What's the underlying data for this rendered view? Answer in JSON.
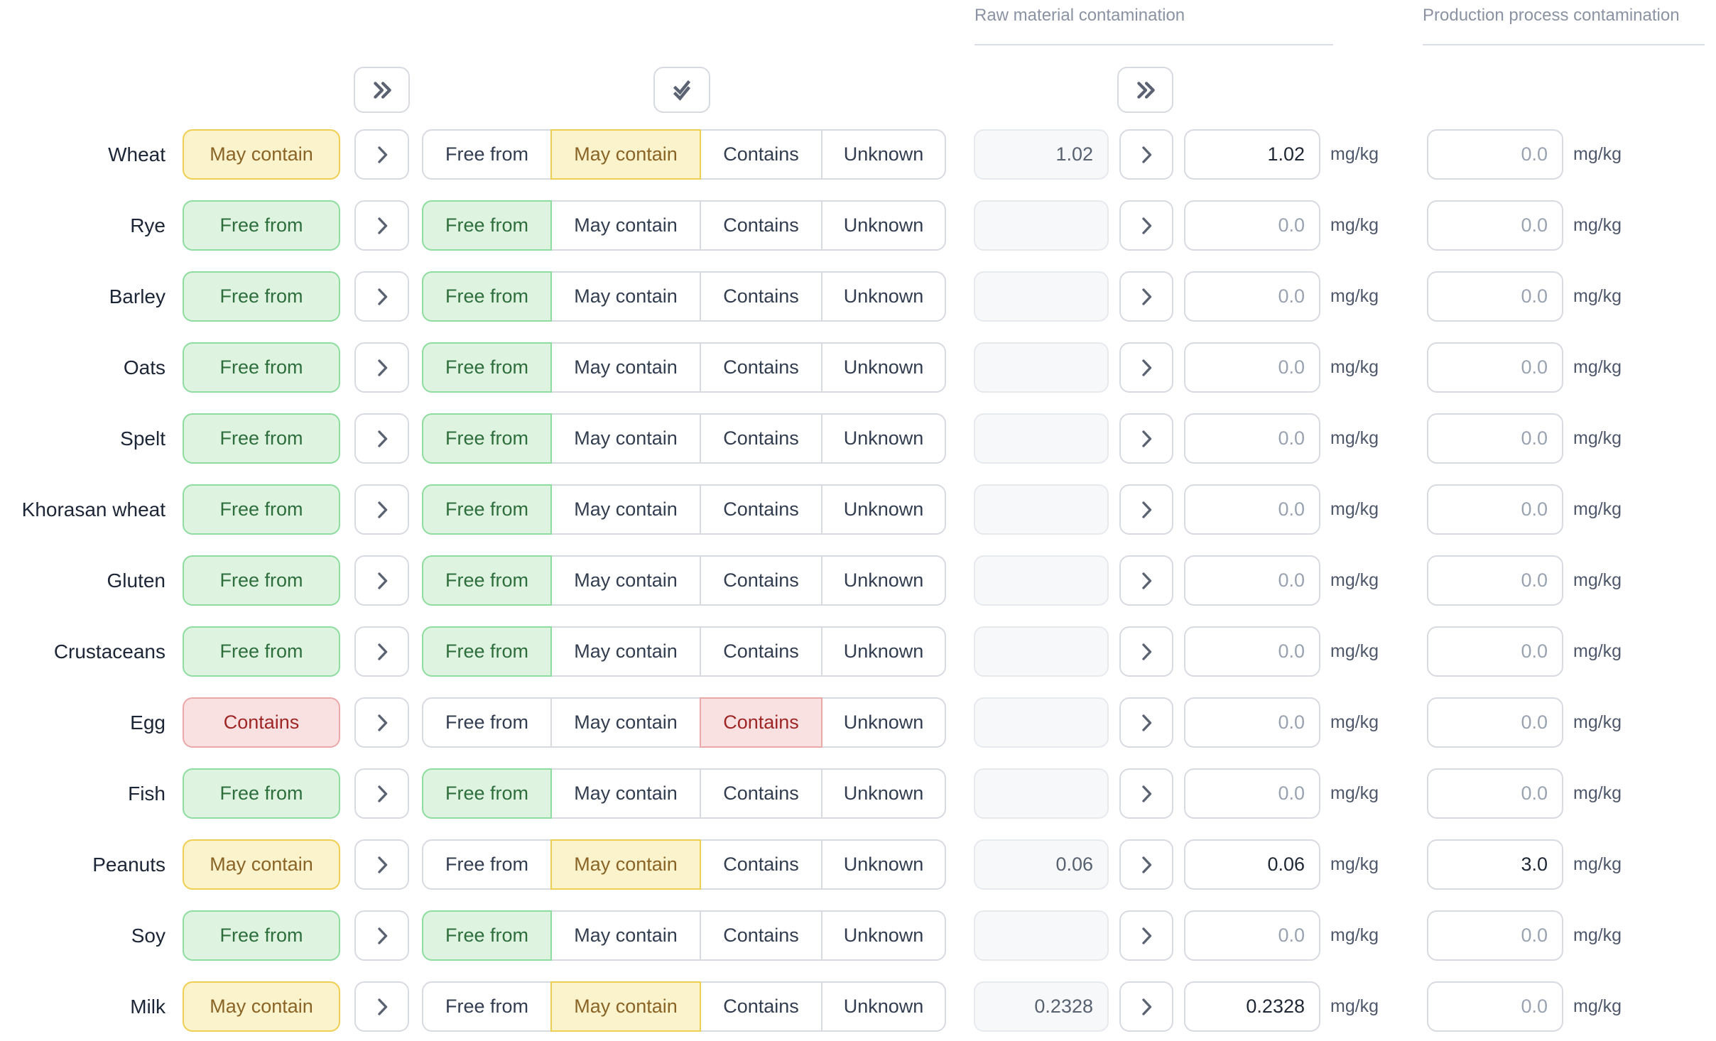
{
  "headers": {
    "raw_material": "Raw material contamination",
    "production_process": "Production process contamination"
  },
  "toolbar": {
    "buttons": [
      {
        "name": "apply-status-to-all",
        "icon": "chevron-double-right-icon"
      },
      {
        "name": "confirm-all-statuses",
        "icon": "check-all-icon"
      },
      {
        "name": "apply-values-to-all",
        "icon": "chevron-double-right-icon"
      }
    ]
  },
  "status_options": [
    "Free from",
    "May contain",
    "Contains",
    "Unknown"
  ],
  "unit_label": "mg/kg",
  "amount_placeholder": "0.0",
  "colors": {
    "free_from": {
      "bg": "#def4e1",
      "border": "#8edc9f",
      "text": "#2e6e3c"
    },
    "may_contain": {
      "bg": "#fbf3cc",
      "border": "#eecf52",
      "text": "#8a6426"
    },
    "contains": {
      "bg": "#f9e1e1",
      "border": "#eba8a8",
      "text": "#9f2626"
    },
    "header_text": "#8b93a2",
    "label_text": "#1d2636"
  },
  "rows": [
    {
      "label": "Wheat",
      "status_label": "May contain",
      "status_key": "may-contain",
      "status_index": 1,
      "measured": "1.02",
      "raw_value": "1.02",
      "production_value": ""
    },
    {
      "label": "Rye",
      "status_label": "Free from",
      "status_key": "free-from",
      "status_index": 0,
      "measured": "",
      "raw_value": "",
      "production_value": ""
    },
    {
      "label": "Barley",
      "status_label": "Free from",
      "status_key": "free-from",
      "status_index": 0,
      "measured": "",
      "raw_value": "",
      "production_value": ""
    },
    {
      "label": "Oats",
      "status_label": "Free from",
      "status_key": "free-from",
      "status_index": 0,
      "measured": "",
      "raw_value": "",
      "production_value": ""
    },
    {
      "label": "Spelt",
      "status_label": "Free from",
      "status_key": "free-from",
      "status_index": 0,
      "measured": "",
      "raw_value": "",
      "production_value": ""
    },
    {
      "label": "Khorasan wheat",
      "status_label": "Free from",
      "status_key": "free-from",
      "status_index": 0,
      "measured": "",
      "raw_value": "",
      "production_value": ""
    },
    {
      "label": "Gluten",
      "status_label": "Free from",
      "status_key": "free-from",
      "status_index": 0,
      "measured": "",
      "raw_value": "",
      "production_value": ""
    },
    {
      "label": "Crustaceans",
      "status_label": "Free from",
      "status_key": "free-from",
      "status_index": 0,
      "measured": "",
      "raw_value": "",
      "production_value": ""
    },
    {
      "label": "Egg",
      "status_label": "Contains",
      "status_key": "contains",
      "status_index": 2,
      "measured": "",
      "raw_value": "",
      "production_value": ""
    },
    {
      "label": "Fish",
      "status_label": "Free from",
      "status_key": "free-from",
      "status_index": 0,
      "measured": "",
      "raw_value": "",
      "production_value": ""
    },
    {
      "label": "Peanuts",
      "status_label": "May contain",
      "status_key": "may-contain",
      "status_index": 1,
      "measured": "0.06",
      "raw_value": "0.06",
      "production_value": "3.0"
    },
    {
      "label": "Soy",
      "status_label": "Free from",
      "status_key": "free-from",
      "status_index": 0,
      "measured": "",
      "raw_value": "",
      "production_value": ""
    },
    {
      "label": "Milk",
      "status_label": "May contain",
      "status_key": "may-contain",
      "status_index": 1,
      "measured": "0.2328",
      "raw_value": "0.2328",
      "production_value": ""
    }
  ]
}
